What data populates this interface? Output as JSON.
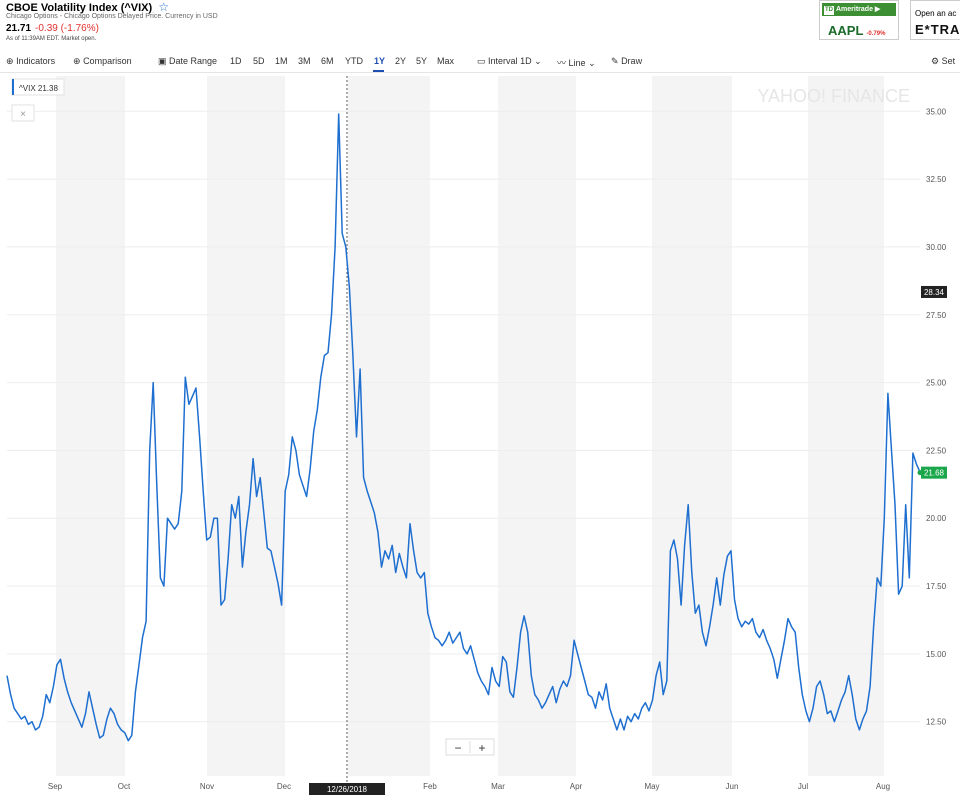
{
  "header": {
    "title": "CBOE Volatility Index (^VIX)",
    "subtitle": "Chicago Options - Chicago Options Delayed Price. Currency in USD",
    "price": "21.71",
    "change": "-0.39 (-1.76%)",
    "as_of": "As of 11:39AM EDT. Market open."
  },
  "ads": {
    "broker": "Ameritrade",
    "broker_badge": "TD",
    "ticker": "AAPL",
    "ticker_change": "-0.79%",
    "open_text": "Open an ac",
    "brand": "E*TRA"
  },
  "toolbar": {
    "indicators": "Indicators",
    "comparison": "Comparison",
    "date_range": "Date Range",
    "ranges": [
      "1D",
      "5D",
      "1M",
      "3M",
      "6M",
      "YTD",
      "1Y",
      "2Y",
      "5Y",
      "Max"
    ],
    "active_range": "1Y",
    "interval": "Interval",
    "interval_value": "1D",
    "line": "Line",
    "draw": "Draw",
    "settings": "Set"
  },
  "chart_data": {
    "type": "line",
    "series": [
      {
        "name": "^VIX",
        "color": "#1e6fd0",
        "values": [
          14.2,
          13.5,
          13.0,
          12.8,
          12.6,
          12.7,
          12.4,
          12.5,
          12.2,
          12.3,
          12.7,
          13.5,
          13.2,
          13.8,
          14.6,
          14.8,
          14.1,
          13.6,
          13.2,
          12.9,
          12.6,
          12.3,
          12.8,
          13.6,
          13.0,
          12.4,
          11.9,
          12.0,
          12.6,
          13.0,
          12.8,
          12.4,
          12.2,
          12.1,
          11.8,
          12.0,
          13.6,
          14.6,
          15.6,
          16.2,
          22.5,
          25.0,
          21.2,
          17.8,
          17.5,
          20.0,
          19.8,
          19.6,
          19.8,
          21.0,
          25.2,
          24.2,
          24.5,
          24.8,
          23.0,
          21.0,
          19.2,
          19.3,
          20.0,
          20.0,
          16.8,
          17.0,
          18.5,
          20.5,
          20.0,
          20.8,
          18.2,
          19.5,
          20.5,
          22.2,
          20.8,
          21.5,
          20.2,
          18.9,
          18.8,
          18.2,
          17.6,
          16.8,
          21.0,
          21.6,
          23.0,
          22.5,
          21.6,
          21.2,
          20.8,
          21.8,
          23.2,
          24.0,
          25.2,
          26.0,
          26.1,
          27.5,
          30.0,
          34.9,
          30.5,
          30.0,
          28.5,
          26.0,
          23.0,
          25.5,
          21.5,
          21.0,
          20.6,
          20.2,
          19.5,
          18.2,
          18.8,
          18.5,
          19.0,
          18.0,
          18.7,
          18.2,
          17.8,
          19.8,
          18.8,
          18.0,
          17.8,
          18.0,
          16.5,
          16.0,
          15.6,
          15.5,
          15.3,
          15.5,
          15.8,
          15.4,
          15.6,
          15.8,
          15.2,
          15.0,
          15.3,
          14.8,
          14.3,
          14.0,
          13.8,
          13.5,
          14.5,
          14.0,
          13.8,
          14.9,
          14.7,
          13.6,
          13.4,
          14.5,
          15.8,
          16.4,
          15.8,
          14.2,
          13.5,
          13.3,
          13.0,
          13.2,
          13.5,
          13.8,
          13.2,
          13.7,
          14.0,
          13.8,
          14.2,
          15.5,
          15.0,
          14.5,
          14.0,
          13.5,
          13.4,
          13.0,
          13.6,
          13.3,
          13.9,
          13.0,
          12.6,
          12.2,
          12.6,
          12.2,
          12.7,
          12.5,
          12.8,
          12.6,
          13.0,
          13.2,
          12.9,
          13.3,
          14.2,
          14.7,
          13.5,
          14.0,
          18.8,
          19.2,
          18.5,
          16.8,
          19.0,
          20.5,
          18.0,
          16.5,
          16.8,
          15.8,
          15.3,
          16.0,
          16.8,
          17.8,
          16.8,
          17.9,
          18.6,
          18.8,
          17.0,
          16.3,
          16.0,
          16.2,
          16.1,
          16.3,
          15.8,
          15.6,
          15.9,
          15.5,
          15.2,
          14.8,
          14.1,
          14.8,
          15.5,
          16.3,
          16.0,
          15.8,
          14.5,
          13.5,
          12.9,
          12.5,
          13.0,
          13.8,
          14.0,
          13.5,
          12.8,
          12.9,
          12.5,
          12.9,
          13.3,
          13.6,
          14.2,
          13.5,
          12.6,
          12.2,
          12.6,
          12.9,
          13.8,
          16.0,
          17.8,
          17.5,
          20.0,
          24.6,
          22.5,
          20.5,
          17.2,
          17.5,
          20.5,
          17.8,
          22.4,
          22.0,
          21.7
        ]
      }
    ],
    "x_axis_labels": [
      "Sep",
      "Oct",
      "Nov",
      "Dec",
      "Jan",
      "Feb",
      "Mar",
      "Apr",
      "May",
      "Jun",
      "Jul",
      "Aug"
    ],
    "crosshair_date": "12/26/2018",
    "y_ticks": [
      "12.50",
      "15.00",
      "17.50",
      "20.00",
      "22.50",
      "25.00",
      "27.50",
      "30.00",
      "32.50",
      "35.00"
    ],
    "ylim": [
      10.5,
      36.3
    ],
    "legend": "^VIX 21.38",
    "legend_placement": "top-left",
    "crosshair_value": "28.34",
    "last_value": "21.68",
    "last_value_color": "#1aa64a",
    "watermark": "YAHOO! FINANCE",
    "grid": true,
    "zoom_minus": "−",
    "zoom_plus": "+",
    "legend_close": "×"
  }
}
